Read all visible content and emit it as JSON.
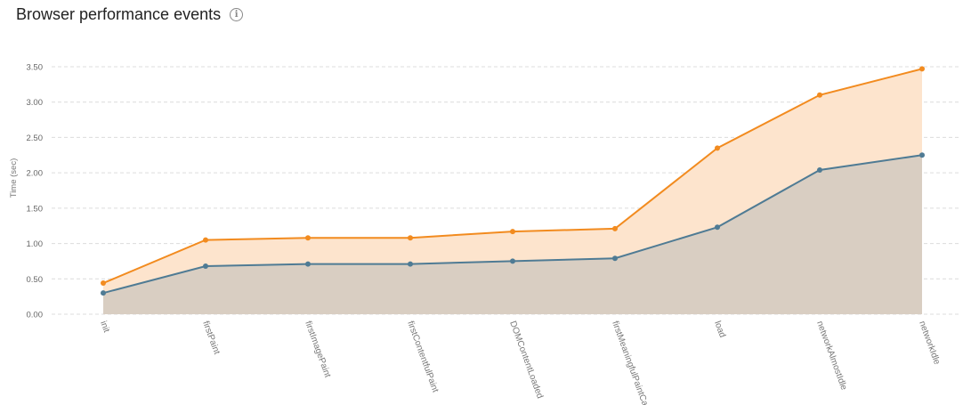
{
  "header": {
    "title": "Browser performance events",
    "info_icon": "info-circle-icon"
  },
  "chart_data": {
    "type": "area",
    "title": "Browser performance events",
    "xlabel": "",
    "ylabel": "Time (sec)",
    "ylim": [
      0,
      3.5
    ],
    "yticks": [
      "0.00",
      "0.50",
      "1.00",
      "1.50",
      "2.00",
      "2.50",
      "3.00",
      "3.50"
    ],
    "grid": true,
    "categories": [
      "init",
      "firstPaint",
      "firstImagePaint",
      "firstContentfulPaint",
      "DOMContentLoaded",
      "firstMeaningfulPaintCa",
      "load",
      "networkAlmostIdle",
      "networkIdle"
    ],
    "series": [
      {
        "values": [
          0.44,
          1.05,
          1.08,
          1.08,
          1.17,
          1.21,
          2.35,
          3.1,
          3.47
        ],
        "color": "#f28b1f",
        "fill": "#fde4cd"
      },
      {
        "values": [
          0.3,
          0.68,
          0.71,
          0.71,
          0.75,
          0.79,
          1.23,
          2.04,
          2.25
        ],
        "color": "#4f7b94",
        "fill": "#d9cec2"
      }
    ]
  }
}
